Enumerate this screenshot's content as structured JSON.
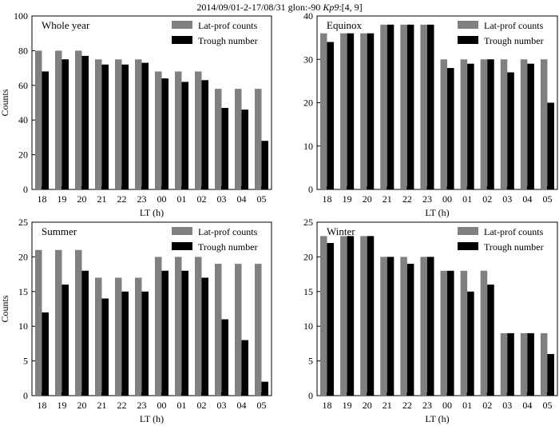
{
  "figure": {
    "suptitle_main": "2014/09/01-2-17/08/31 glon:-90 ",
    "suptitle_kp": "Kp9",
    "suptitle_range": ":[4, 9]"
  },
  "colors": {
    "lat_prof": "#808080",
    "trough": "#000000"
  },
  "chart_data": [
    {
      "type": "bar",
      "title": "Whole year",
      "xlabel": "LT (h)",
      "ylabel": "Counts",
      "ylim": [
        0,
        100
      ],
      "yticks": [
        0,
        20,
        40,
        60,
        80,
        100
      ],
      "categories": [
        "18",
        "19",
        "20",
        "21",
        "22",
        "23",
        "00",
        "01",
        "02",
        "03",
        "04",
        "05"
      ],
      "series": [
        {
          "name": "Lat-prof counts",
          "values": [
            80,
            80,
            80,
            75,
            75,
            75,
            68,
            68,
            68,
            58,
            58,
            58
          ]
        },
        {
          "name": "Trough number",
          "values": [
            68,
            75,
            77,
            72,
            72,
            73,
            64,
            62,
            63,
            47,
            46,
            28
          ]
        }
      ]
    },
    {
      "type": "bar",
      "title": "Equinox",
      "xlabel": "LT (h)",
      "ylabel": "",
      "ylim": [
        0,
        40
      ],
      "yticks": [
        0,
        10,
        20,
        30,
        40
      ],
      "categories": [
        "18",
        "19",
        "20",
        "21",
        "22",
        "23",
        "00",
        "01",
        "02",
        "03",
        "04",
        "05"
      ],
      "series": [
        {
          "name": "Lat-prof counts",
          "values": [
            36,
            36,
            36,
            38,
            38,
            38,
            30,
            30,
            30,
            30,
            30,
            30
          ]
        },
        {
          "name": "Trough number",
          "values": [
            34,
            36,
            36,
            38,
            38,
            38,
            28,
            29,
            30,
            27,
            29,
            20
          ]
        }
      ]
    },
    {
      "type": "bar",
      "title": "Summer",
      "xlabel": "LT (h)",
      "ylabel": "Counts",
      "ylim": [
        0,
        25
      ],
      "yticks": [
        0,
        5,
        10,
        15,
        20,
        25
      ],
      "categories": [
        "18",
        "19",
        "20",
        "21",
        "22",
        "23",
        "00",
        "01",
        "02",
        "03",
        "04",
        "05"
      ],
      "series": [
        {
          "name": "Lat-prof counts",
          "values": [
            21,
            21,
            21,
            17,
            17,
            17,
            20,
            20,
            20,
            19,
            19,
            19
          ]
        },
        {
          "name": "Trough number",
          "values": [
            12,
            16,
            18,
            14,
            15,
            15,
            18,
            18,
            17,
            11,
            8,
            2
          ]
        }
      ]
    },
    {
      "type": "bar",
      "title": "Winter",
      "xlabel": "LT (h)",
      "ylabel": "",
      "ylim": [
        0,
        25
      ],
      "yticks": [
        0,
        5,
        10,
        15,
        20,
        25
      ],
      "categories": [
        "18",
        "19",
        "20",
        "21",
        "22",
        "23",
        "00",
        "01",
        "02",
        "03",
        "04",
        "05"
      ],
      "series": [
        {
          "name": "Lat-prof counts",
          "values": [
            23,
            23,
            23,
            20,
            20,
            20,
            18,
            18,
            18,
            9,
            9,
            9
          ]
        },
        {
          "name": "Trough number",
          "values": [
            22,
            23,
            23,
            20,
            19,
            20,
            18,
            15,
            16,
            9,
            9,
            6
          ]
        }
      ]
    }
  ]
}
